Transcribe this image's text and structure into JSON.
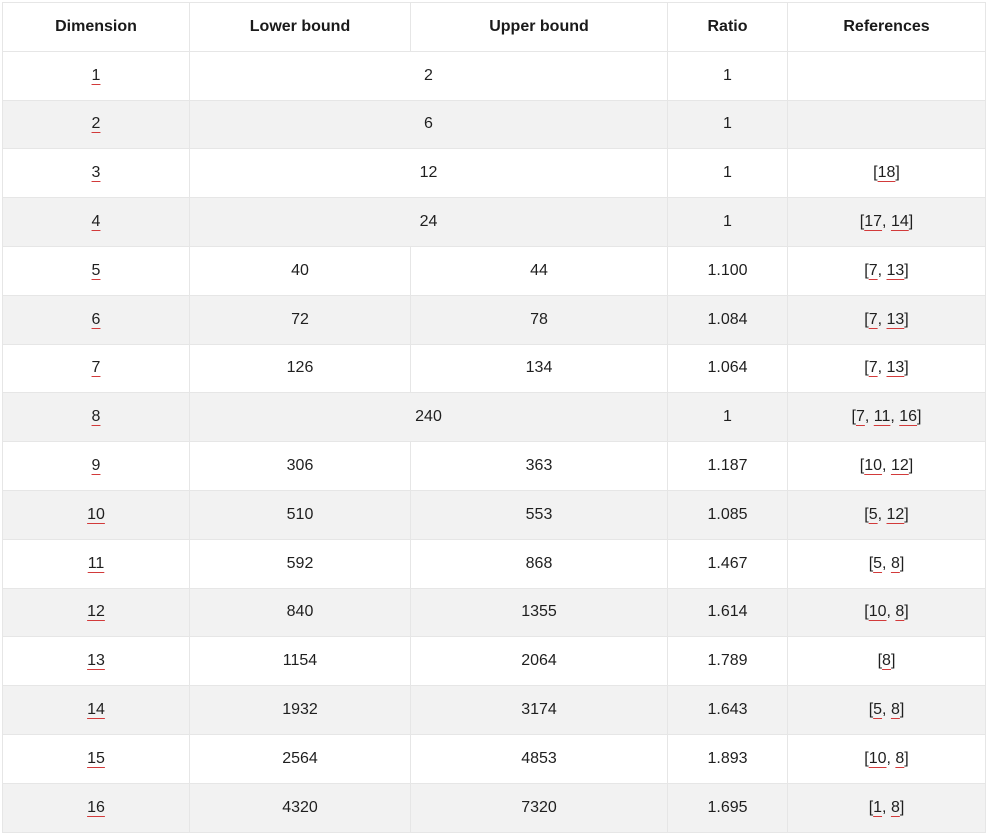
{
  "table": {
    "headers": [
      "Dimension",
      "Lower bound",
      "Upper bound",
      "Ratio",
      "References"
    ],
    "rows": [
      {
        "dimension": "1",
        "value": "2",
        "ratio": "1",
        "refs": []
      },
      {
        "dimension": "2",
        "value": "6",
        "ratio": "1",
        "refs": []
      },
      {
        "dimension": "3",
        "value": "12",
        "ratio": "1",
        "refs": [
          "18"
        ]
      },
      {
        "dimension": "4",
        "value": "24",
        "ratio": "1",
        "refs": [
          "17",
          "14"
        ]
      },
      {
        "dimension": "5",
        "lower": "40",
        "upper": "44",
        "ratio": "1.100",
        "refs": [
          "7",
          "13"
        ]
      },
      {
        "dimension": "6",
        "lower": "72",
        "upper": "78",
        "ratio": "1.084",
        "refs": [
          "7",
          "13"
        ]
      },
      {
        "dimension": "7",
        "lower": "126",
        "upper": "134",
        "ratio": "1.064",
        "refs": [
          "7",
          "13"
        ]
      },
      {
        "dimension": "8",
        "value": "240",
        "ratio": "1",
        "refs": [
          "7",
          "11",
          "16"
        ]
      },
      {
        "dimension": "9",
        "lower": "306",
        "upper": "363",
        "ratio": "1.187",
        "refs": [
          "10",
          "12"
        ]
      },
      {
        "dimension": "10",
        "lower": "510",
        "upper": "553",
        "ratio": "1.085",
        "refs": [
          "5",
          "12"
        ]
      },
      {
        "dimension": "11",
        "lower": "592",
        "upper": "868",
        "ratio": "1.467",
        "refs": [
          "5",
          "8"
        ]
      },
      {
        "dimension": "12",
        "lower": "840",
        "upper": "1355",
        "ratio": "1.614",
        "refs": [
          "10",
          "8"
        ]
      },
      {
        "dimension": "13",
        "lower": "1154",
        "upper": "2064",
        "ratio": "1.789",
        "refs": [
          "8"
        ]
      },
      {
        "dimension": "14",
        "lower": "1932",
        "upper": "3174",
        "ratio": "1.643",
        "refs": [
          "5",
          "8"
        ]
      },
      {
        "dimension": "15",
        "lower": "2564",
        "upper": "4853",
        "ratio": "1.893",
        "refs": [
          "10",
          "8"
        ]
      },
      {
        "dimension": "16",
        "lower": "4320",
        "upper": "7320",
        "ratio": "1.695",
        "refs": [
          "1",
          "8"
        ]
      }
    ]
  }
}
